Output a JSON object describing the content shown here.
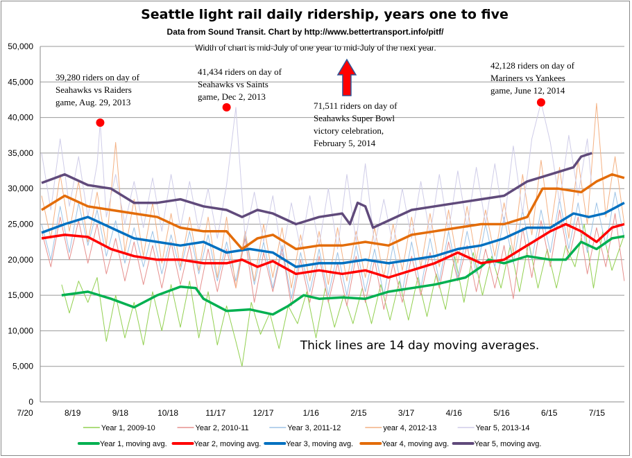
{
  "chart_data": {
    "type": "line",
    "title": "Seattle light rail daily ridership, years one to five",
    "subtitle": "Data from Sound Transit.  Chart by http://www.bettertransport.info/pitf/",
    "subtitle2": "Width of chart is mid-July of one year to mid-July of the next year.",
    "x_tick_labels": [
      "7/20",
      "8/19",
      "9/18",
      "10/18",
      "11/17",
      "12/17",
      "1/16",
      "2/15",
      "3/17",
      "4/16",
      "5/16",
      "6/15",
      "7/15"
    ],
    "x_unit": "days since 7/20",
    "ylim": [
      0,
      50000
    ],
    "y_ticks": [
      0,
      5000,
      10000,
      15000,
      20000,
      25000,
      30000,
      35000,
      40000,
      45000,
      50000
    ],
    "y_tick_labels": [
      "0",
      "5,000",
      "10,000",
      "15,000",
      "20,000",
      "25,000",
      "30,000",
      "35,000",
      "40,000",
      "45,000",
      "50,000"
    ],
    "grid": true,
    "legend_placement": "bottom",
    "series_daily": [
      {
        "name": "Year 1, 2009-10",
        "color": "#92d050",
        "x": [
          13,
          18,
          24,
          30,
          36,
          42,
          48,
          54,
          60,
          66,
          72,
          78,
          84,
          90,
          96,
          102,
          108,
          114,
          120,
          126,
          130,
          136,
          142,
          148,
          154,
          160,
          166,
          172,
          178,
          184,
          190,
          196,
          202,
          208,
          214,
          220,
          226,
          232,
          238,
          244,
          250,
          256,
          262,
          268,
          274,
          280,
          286,
          292,
          298,
          304,
          310,
          316,
          322,
          328,
          334,
          340,
          346,
          352,
          358,
          364,
          370,
          378
        ],
        "values": [
          16500,
          12500,
          17000,
          14000,
          17500,
          8500,
          15000,
          9000,
          14000,
          8000,
          15500,
          10000,
          16500,
          10500,
          17000,
          9000,
          15500,
          8000,
          13500,
          8500,
          5000,
          14000,
          9500,
          12500,
          7500,
          13500,
          11000,
          15500,
          9000,
          16000,
          10500,
          15000,
          11000,
          16000,
          11000,
          16500,
          11500,
          17000,
          11500,
          17500,
          12000,
          18000,
          13000,
          20500,
          14000,
          21000,
          15000,
          20500,
          16000,
          22000,
          15500,
          22500,
          16000,
          21500,
          16000,
          22000,
          19000,
          25000,
          16000,
          24000,
          18500,
          23500
        ]
      },
      {
        "name": "Year 2, 2010-11",
        "color": "#e6908e",
        "x": [
          0,
          6,
          12,
          18,
          24,
          30,
          36,
          42,
          48,
          54,
          60,
          66,
          72,
          78,
          84,
          90,
          96,
          102,
          108,
          114,
          120,
          126,
          132,
          138,
          144,
          150,
          156,
          162,
          168,
          174,
          180,
          186,
          192,
          198,
          204,
          210,
          216,
          222,
          228,
          234,
          240,
          246,
          252,
          258,
          264,
          270,
          276,
          282,
          288,
          294,
          300,
          306,
          312,
          318,
          324,
          330,
          336,
          342,
          348,
          354,
          360,
          366,
          372,
          378
        ],
        "values": [
          24000,
          19000,
          26000,
          20000,
          25500,
          19500,
          25000,
          18000,
          23000,
          17000,
          22500,
          16500,
          22000,
          16000,
          22500,
          16500,
          22000,
          15000,
          21500,
          15500,
          21500,
          16000,
          23000,
          14000,
          21000,
          15500,
          21500,
          13500,
          20000,
          14000,
          20500,
          14000,
          19500,
          13500,
          20500,
          14000,
          20000,
          13000,
          19500,
          14000,
          20500,
          15000,
          21000,
          16000,
          22500,
          17000,
          22000,
          15500,
          21500,
          16000,
          22000,
          14500,
          24500,
          17500,
          25500,
          19000,
          27000,
          20000,
          26000,
          18000,
          24500,
          19000,
          26500,
          17000
        ]
      },
      {
        "name": "Year 3, 2011-12",
        "color": "#9dc3e6",
        "x": [
          0,
          6,
          12,
          18,
          24,
          30,
          36,
          42,
          48,
          54,
          60,
          66,
          72,
          78,
          84,
          90,
          96,
          102,
          108,
          114,
          120,
          126,
          132,
          138,
          144,
          150,
          156,
          162,
          168,
          174,
          180,
          186,
          192,
          198,
          204,
          210,
          216,
          222,
          228,
          234,
          240,
          246,
          252,
          258,
          264,
          270,
          276,
          282,
          288,
          294,
          300,
          306,
          312,
          318,
          324,
          330,
          336,
          342,
          348,
          354,
          360,
          366,
          372,
          378
        ],
        "values": [
          25000,
          20000,
          27500,
          21000,
          28000,
          22000,
          27000,
          20500,
          25500,
          19500,
          24500,
          19000,
          24000,
          18000,
          23500,
          18500,
          24000,
          18000,
          23500,
          17000,
          22500,
          17000,
          23500,
          16500,
          22500,
          16000,
          22000,
          14500,
          21000,
          15500,
          21500,
          15000,
          21000,
          15000,
          22000,
          15500,
          21500,
          15000,
          22000,
          15500,
          22500,
          16000,
          23000,
          17000,
          24000,
          17500,
          24000,
          18000,
          25000,
          19000,
          26000,
          19500,
          27000,
          20000,
          27000,
          21000,
          28500,
          21500,
          28000,
          21000,
          28000,
          22000,
          29500,
          23000
        ]
      },
      {
        "name": "year 4, 2012-13",
        "color": "#f4b183",
        "x": [
          0,
          6,
          12,
          18,
          24,
          30,
          36,
          42,
          48,
          54,
          60,
          66,
          72,
          78,
          84,
          90,
          96,
          102,
          108,
          114,
          120,
          126,
          132,
          138,
          144,
          150,
          156,
          162,
          168,
          174,
          180,
          186,
          192,
          198,
          204,
          210,
          216,
          222,
          228,
          234,
          240,
          246,
          252,
          258,
          264,
          270,
          276,
          282,
          288,
          294,
          300,
          306,
          312,
          318,
          324,
          330,
          336,
          342,
          348,
          354,
          360,
          366,
          372,
          378
        ],
        "values": [
          29000,
          23000,
          32000,
          24000,
          31000,
          22500,
          29500,
          22000,
          36500,
          21000,
          28500,
          20500,
          28000,
          19500,
          26500,
          19000,
          26000,
          18500,
          26000,
          17500,
          26000,
          16000,
          24000,
          17000,
          25000,
          17500,
          24500,
          16000,
          23500,
          17000,
          24000,
          16500,
          24500,
          17000,
          24000,
          17500,
          24500,
          17500,
          25000,
          18500,
          26000,
          19000,
          26500,
          19000,
          27000,
          19500,
          27500,
          20000,
          27000,
          20500,
          28000,
          21000,
          32000,
          23500,
          34000,
          24000,
          33000,
          23000,
          34000,
          25000,
          42000,
          26000,
          34500,
          25000
        ]
      },
      {
        "name": "Year 5, 2013-14",
        "color": "#cfcce8",
        "x": [
          0,
          6,
          12,
          18,
          24,
          30,
          36,
          38,
          42,
          48,
          54,
          60,
          66,
          72,
          78,
          84,
          90,
          96,
          102,
          108,
          114,
          120,
          126,
          132,
          138,
          144,
          150,
          156,
          162,
          168,
          174,
          180,
          186,
          192,
          198,
          204,
          210,
          216,
          222,
          228,
          234,
          240,
          246,
          252,
          258,
          264,
          270,
          276,
          282,
          288,
          294,
          300,
          306,
          312,
          318,
          324,
          330,
          336,
          342,
          348,
          354,
          357
        ],
        "values": [
          35000,
          27000,
          37000,
          27500,
          34500,
          26000,
          33500,
          39280,
          26000,
          32000,
          25000,
          31000,
          24500,
          31500,
          24000,
          32000,
          24500,
          31000,
          24000,
          30000,
          23000,
          30500,
          41434,
          23000,
          29500,
          22500,
          29000,
          20500,
          28000,
          21500,
          29000,
          22000,
          30000,
          21500,
          32000,
          22500,
          33500,
          22000,
          28500,
          22000,
          30000,
          23000,
          31000,
          23500,
          32000,
          24000,
          32500,
          24500,
          33000,
          25000,
          33500,
          25000,
          36000,
          26500,
          37000,
          42128,
          36500,
          28000,
          37500,
          29000,
          37000,
          30000
        ]
      }
    ],
    "series_moving_avg": [
      {
        "name": "Year 1, moving avg.",
        "color": "#00b050",
        "x": [
          13,
          30,
          45,
          60,
          75,
          90,
          100,
          105,
          120,
          135,
          150,
          160,
          170,
          180,
          195,
          210,
          225,
          240,
          255,
          265,
          275,
          285,
          290,
          300,
          315,
          330,
          340,
          350,
          360,
          370,
          378
        ],
        "values": [
          15000,
          15500,
          14500,
          13300,
          15000,
          16200,
          16000,
          14500,
          12800,
          13000,
          12300,
          13500,
          15000,
          14500,
          14700,
          14500,
          15500,
          16000,
          16500,
          17000,
          17500,
          19000,
          20000,
          19500,
          20500,
          20000,
          20000,
          22500,
          21500,
          23000,
          23300
        ]
      },
      {
        "name": "Year 2, moving avg.",
        "color": "#ff0000",
        "x": [
          0,
          15,
          30,
          45,
          60,
          75,
          90,
          105,
          120,
          130,
          140,
          150,
          165,
          180,
          195,
          210,
          225,
          240,
          255,
          270,
          285,
          300,
          315,
          330,
          340,
          350,
          360,
          370,
          378
        ],
        "values": [
          23000,
          23500,
          23200,
          21500,
          20500,
          20000,
          20000,
          19500,
          19500,
          20000,
          19000,
          19800,
          18000,
          18500,
          18000,
          18500,
          17500,
          18500,
          19500,
          21000,
          19500,
          20000,
          22000,
          24000,
          25000,
          24000,
          22500,
          24500,
          25000
        ]
      },
      {
        "name": "Year 3, moving avg.",
        "color": "#0070c0",
        "x": [
          0,
          15,
          30,
          45,
          60,
          75,
          90,
          105,
          120,
          135,
          150,
          165,
          180,
          195,
          210,
          225,
          240,
          255,
          270,
          285,
          300,
          315,
          330,
          345,
          355,
          365,
          378
        ],
        "values": [
          23800,
          25000,
          26000,
          24500,
          23000,
          22500,
          22000,
          22500,
          21000,
          21500,
          21000,
          19000,
          19500,
          19500,
          20000,
          19500,
          20000,
          20500,
          21500,
          22000,
          23000,
          24500,
          24500,
          26500,
          26000,
          26500,
          28000
        ]
      },
      {
        "name": "Year 4, moving avg.",
        "color": "#e36c09",
        "x": [
          0,
          15,
          30,
          45,
          60,
          75,
          90,
          105,
          120,
          130,
          140,
          150,
          165,
          180,
          195,
          210,
          225,
          240,
          255,
          270,
          285,
          300,
          315,
          325,
          335,
          350,
          360,
          370,
          378
        ],
        "values": [
          27000,
          29000,
          27500,
          27000,
          26500,
          26000,
          24500,
          24000,
          24000,
          21500,
          23000,
          23500,
          21500,
          22000,
          22000,
          22500,
          22000,
          23500,
          24000,
          24500,
          25000,
          25000,
          26000,
          30000,
          30000,
          29500,
          31000,
          32000,
          31500
        ]
      },
      {
        "name": "Year 5, moving avg.",
        "color": "#604a7b",
        "x": [
          0,
          15,
          30,
          45,
          60,
          75,
          90,
          105,
          120,
          130,
          140,
          150,
          165,
          180,
          195,
          200,
          205,
          210,
          215,
          225,
          240,
          255,
          270,
          285,
          300,
          315,
          330,
          345,
          350,
          357
        ],
        "values": [
          30800,
          32000,
          30500,
          30000,
          28000,
          28000,
          28500,
          27500,
          27000,
          26000,
          27000,
          26500,
          25000,
          26000,
          26500,
          25000,
          28000,
          27500,
          24500,
          25500,
          27000,
          27500,
          28000,
          28500,
          29000,
          31000,
          32000,
          33000,
          34500,
          35000
        ]
      }
    ],
    "annotations": [
      {
        "text": [
          "39,280 riders on day of",
          "Seahawks vs Raiders",
          "game, Aug. 29, 2013"
        ],
        "x": 38,
        "y": 39280
      },
      {
        "text": [
          "41,434 riders on day of",
          "Seahawks vs Saints",
          "game,  Dec 2, 2013"
        ],
        "x": 120,
        "y": 41434
      },
      {
        "text": [
          "71,511 riders on day of",
          "Seahawks  Super Bowl",
          "victory celebration,",
          "February 5, 2014"
        ],
        "x": 198,
        "y": 71511
      },
      {
        "text": [
          "42,128 riders on day of",
          "Mariners vs Yankees",
          "game,  June 12, 2014"
        ],
        "x": 324,
        "y": 42128
      }
    ],
    "note": "Thick lines are 14 day moving averages.",
    "marker_color": "#ff0000"
  }
}
